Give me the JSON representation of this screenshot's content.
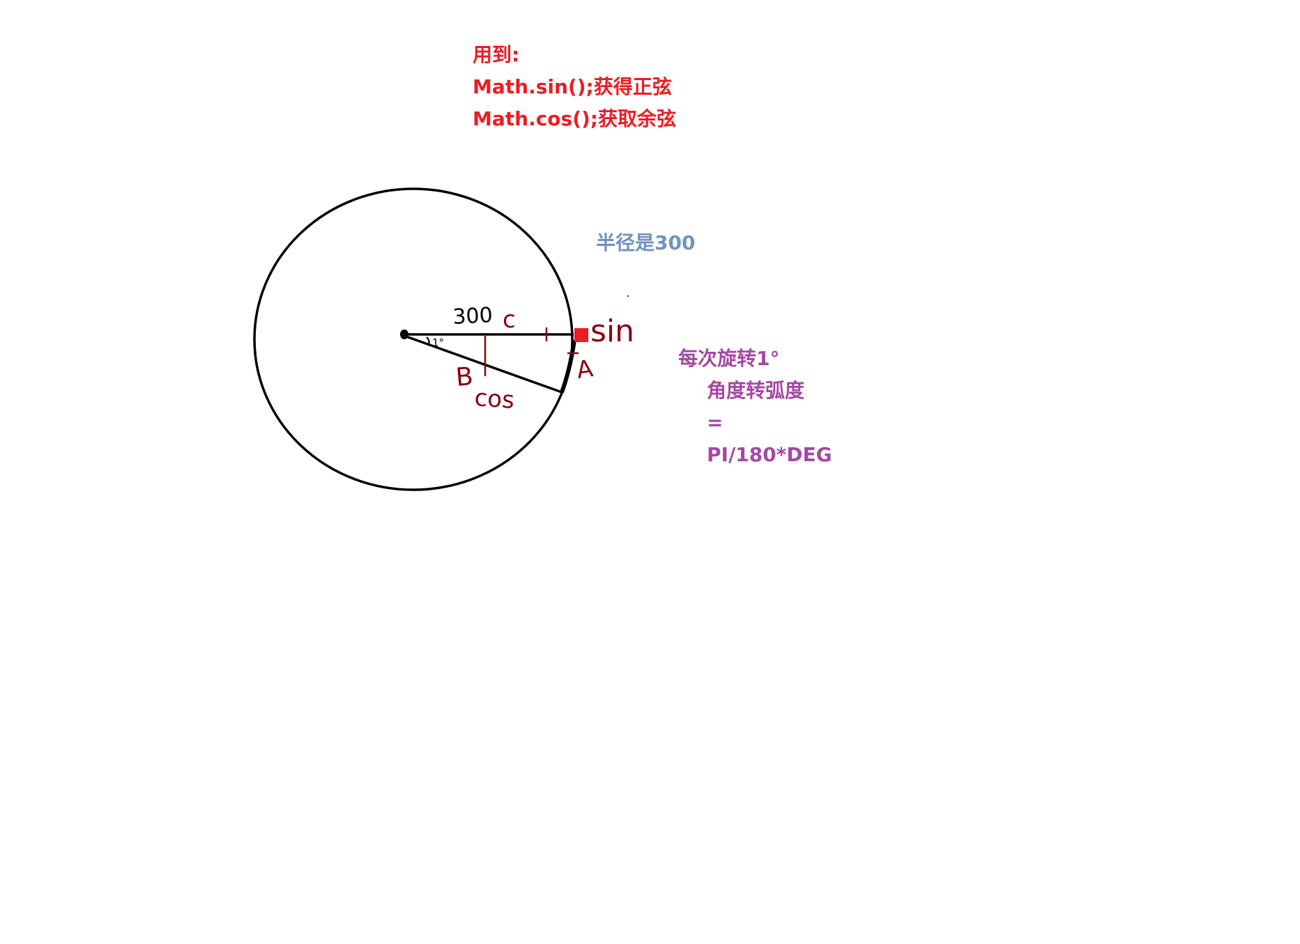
{
  "notes": {
    "uses": {
      "heading": "用到:",
      "sin_line": "Math.sin();获得正弦",
      "cos_line": "Math.cos();获取余弦"
    },
    "radius": "半径是300",
    "rotation": {
      "line1": "每次旋转1°",
      "line2": "角度转弧度",
      "line3": "=",
      "line4": "PI/180*DEG"
    }
  },
  "diagram_labels": {
    "radius_value": "300",
    "point_c": "c",
    "sin": "sin",
    "point_a": "A",
    "point_b": "B",
    "cos": "cos",
    "angle": "1°"
  },
  "colors": {
    "red_text": "#ed1c24",
    "blue_text": "#7092be",
    "purple_text": "#a349a4",
    "handwriting": "#880015",
    "marker": "#ed1c24",
    "stroke": "#000000"
  }
}
